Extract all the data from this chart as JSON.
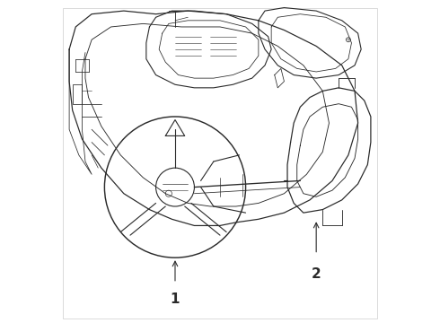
{
  "background_color": "#ffffff",
  "line_color": "#2a2a2a",
  "line_width": 0.8,
  "label1_text": "1",
  "label2_text": "2",
  "figsize": [
    4.9,
    3.6
  ],
  "dpi": 100
}
